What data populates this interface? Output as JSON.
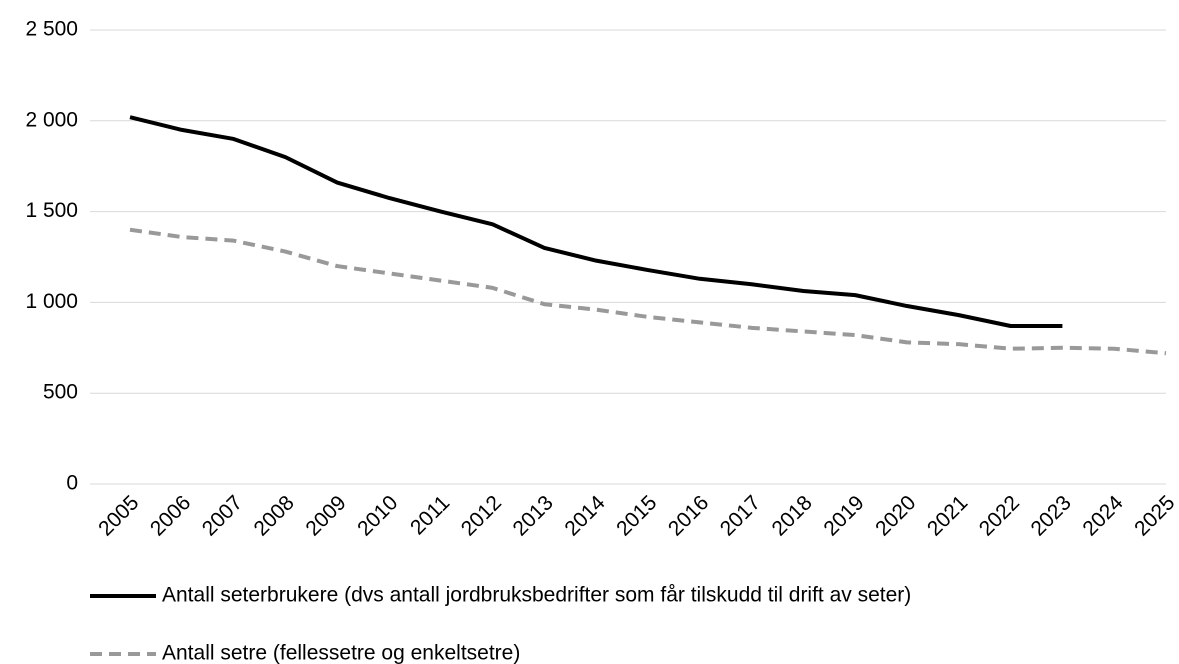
{
  "chart_data": {
    "type": "line",
    "categories": [
      "2005",
      "2006",
      "2007",
      "2008",
      "2009",
      "2010",
      "2011",
      "2012",
      "2013",
      "2014",
      "2015",
      "2016",
      "2017",
      "2018",
      "2019",
      "2020",
      "2021",
      "2022",
      "2023",
      "2024",
      "2025"
    ],
    "series": [
      {
        "name": "Antall seterbrukere (dvs antall jordbruksbedrifter som får tilskudd til drift av seter)",
        "color": "#000000",
        "style": "solid",
        "values": [
          2020,
          1950,
          1900,
          1800,
          1660,
          1575,
          1500,
          1430,
          1300,
          1230,
          1178,
          1130,
          1100,
          1063,
          1040,
          980,
          930,
          870,
          870,
          null,
          null
        ]
      },
      {
        "name": "Antall setre (fellessetre og enkeltsetre)",
        "color": "#999999",
        "style": "dashed",
        "values": [
          1400,
          1360,
          1340,
          1280,
          1200,
          1160,
          1120,
          1080,
          990,
          960,
          920,
          890,
          860,
          840,
          820,
          780,
          770,
          745,
          750,
          745,
          720
        ]
      }
    ],
    "ylim": [
      0,
      2500
    ],
    "yticks": [
      0,
      500,
      {
        "value": 1000,
        "label": "1 000"
      },
      {
        "value": 1500,
        "label": "1 500"
      },
      {
        "value": 2000,
        "label": "2 000"
      },
      {
        "value": 2500,
        "label": "2 500"
      }
    ],
    "grid": true,
    "legend": "bottom"
  }
}
